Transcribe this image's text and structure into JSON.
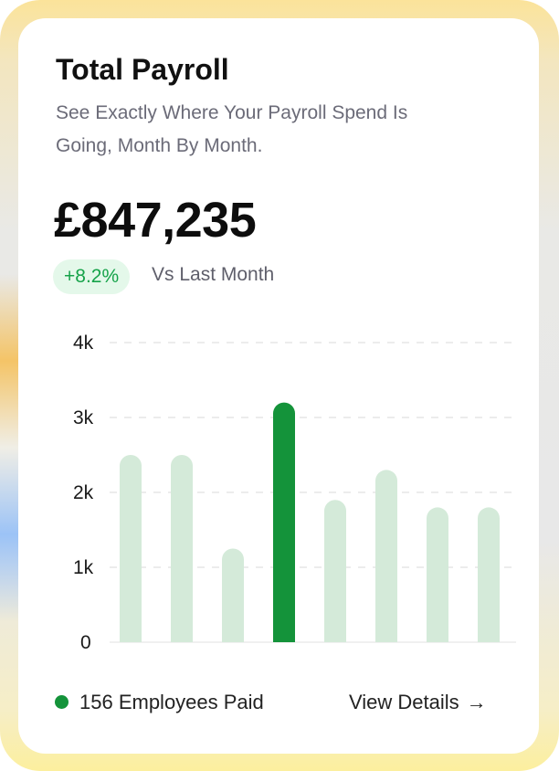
{
  "card": {
    "title": "Total Payroll",
    "subtitle": "See Exactly Where Your Payroll Spend Is Going, Month By Month.",
    "amount": "£847,235",
    "change_badge": "+8.2%",
    "change_label": "Vs Last Month",
    "employees_label": "156 Employees Paid",
    "view_details_label": "View Details",
    "view_details_icon": "arrow-right-icon"
  },
  "colors": {
    "accent": "#16a34a",
    "bar_highlight": "#14933a",
    "bar_default": "#d4ead9",
    "badge_bg": "#e4f8ea"
  },
  "chart_data": {
    "type": "bar",
    "values": [
      2.5,
      2.5,
      1.25,
      3.2,
      1.9,
      2.3,
      1.8,
      1.8
    ],
    "highlight_index": 3,
    "y_ticks": [
      "0",
      "1k",
      "2k",
      "3k",
      "4k"
    ],
    "ylim": [
      0,
      4
    ],
    "unit": "k",
    "grid": "dashed horizontal",
    "legend": "none"
  }
}
